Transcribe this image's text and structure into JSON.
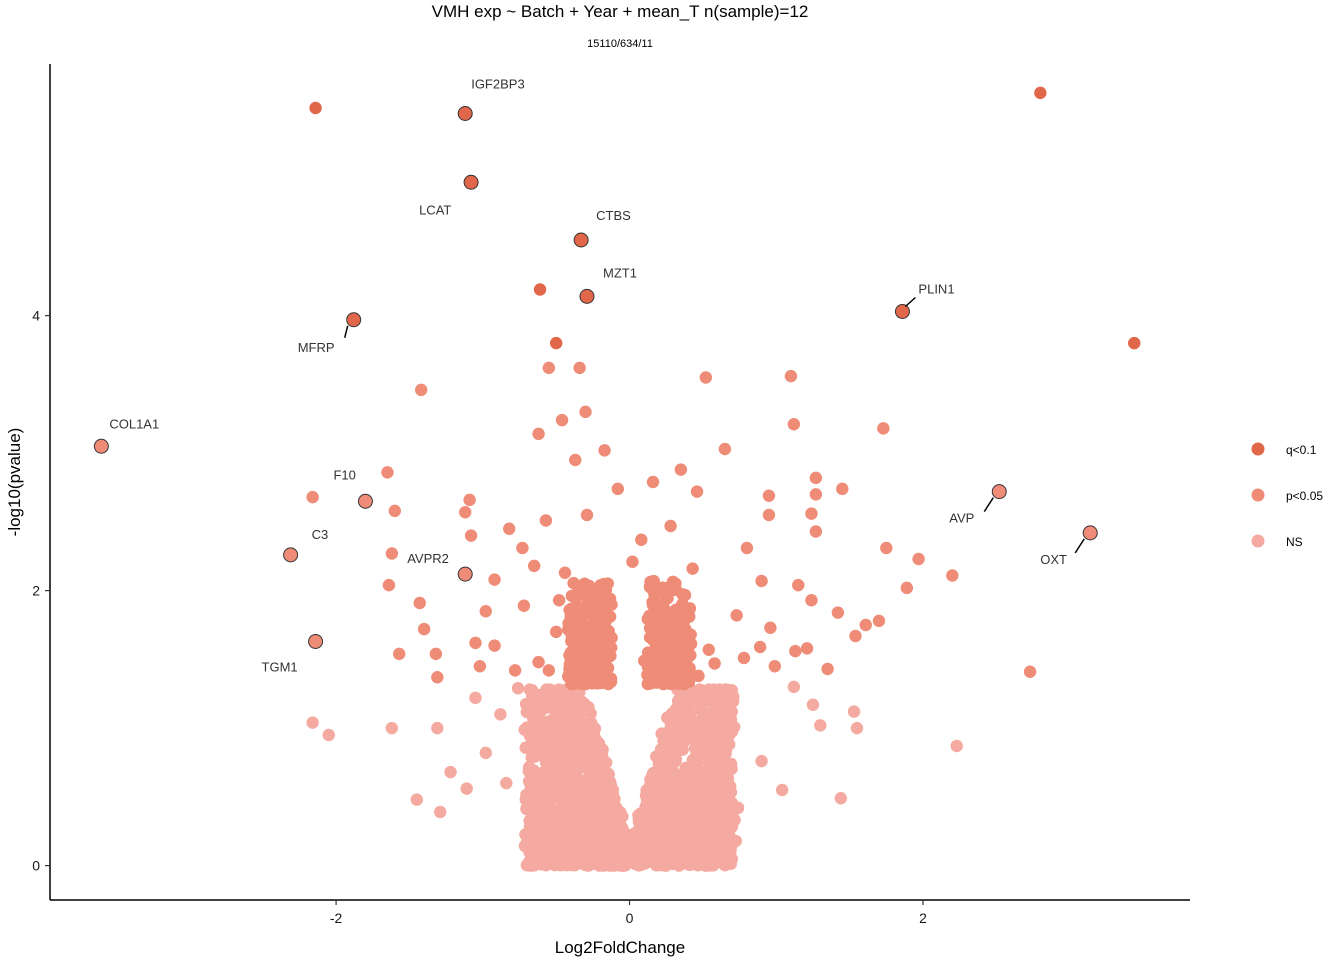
{
  "chart_data": {
    "type": "scatter",
    "title": "VMH exp ~ Batch + Year + mean_T n(sample)=12",
    "subtitle": "15110/634/11",
    "xlabel": "Log2FoldChange",
    "ylabel": "-log10(pvalue)",
    "xlim": [
      -3.95,
      3.82
    ],
    "ylim": [
      -0.25,
      5.83
    ],
    "x_ticks": [
      -2,
      0,
      2
    ],
    "y_ticks": [
      0,
      2,
      4
    ],
    "grid": false,
    "legend_position": "right",
    "colors": {
      "q<0.1": "#e0674a",
      "p<0.05": "#ef8c78",
      "NS": "#f4aaa0"
    },
    "series": [
      {
        "name": "q<0.1",
        "points": [
          [
            2.8,
            5.62
          ],
          [
            -2.14,
            5.51
          ],
          [
            -1.12,
            5.47
          ],
          [
            -1.08,
            4.97
          ],
          [
            -0.33,
            4.55
          ],
          [
            -0.61,
            4.19
          ],
          [
            -0.29,
            4.14
          ],
          [
            1.86,
            4.03
          ],
          [
            -1.88,
            3.97
          ],
          [
            -0.5,
            3.8
          ],
          [
            3.44,
            3.8
          ]
        ]
      },
      {
        "name": "p<0.05",
        "points": [
          [
            -3.6,
            3.05
          ],
          [
            -1.42,
            3.46
          ],
          [
            -0.55,
            3.62
          ],
          [
            -0.34,
            3.62
          ],
          [
            0.52,
            3.55
          ],
          [
            1.1,
            3.56
          ],
          [
            -0.46,
            3.24
          ],
          [
            -0.62,
            3.14
          ],
          [
            -0.3,
            3.3
          ],
          [
            1.12,
            3.21
          ],
          [
            1.73,
            3.18
          ],
          [
            -0.37,
            2.95
          ],
          [
            -0.17,
            3.02
          ],
          [
            0.35,
            2.88
          ],
          [
            0.65,
            3.03
          ],
          [
            -2.16,
            2.68
          ],
          [
            -1.65,
            2.86
          ],
          [
            -1.6,
            2.58
          ],
          [
            -1.09,
            2.66
          ],
          [
            -1.8,
            2.65
          ],
          [
            -1.12,
            2.57
          ],
          [
            1.27,
            2.82
          ],
          [
            1.45,
            2.74
          ],
          [
            0.95,
            2.69
          ],
          [
            1.27,
            2.7
          ],
          [
            2.52,
            2.72
          ],
          [
            -0.08,
            2.74
          ],
          [
            0.16,
            2.79
          ],
          [
            0.46,
            2.72
          ],
          [
            -0.29,
            2.55
          ],
          [
            -0.57,
            2.51
          ],
          [
            -0.82,
            2.45
          ],
          [
            -2.31,
            2.26
          ],
          [
            -1.08,
            2.4
          ],
          [
            -1.62,
            2.27
          ],
          [
            -0.73,
            2.31
          ],
          [
            0.08,
            2.37
          ],
          [
            0.28,
            2.47
          ],
          [
            0.95,
            2.55
          ],
          [
            1.24,
            2.56
          ],
          [
            1.27,
            2.43
          ],
          [
            0.8,
            2.31
          ],
          [
            1.75,
            2.31
          ],
          [
            1.97,
            2.23
          ],
          [
            3.14,
            2.42
          ],
          [
            -1.12,
            2.12
          ],
          [
            -0.92,
            2.08
          ],
          [
            -0.65,
            2.18
          ],
          [
            -0.44,
            2.13
          ],
          [
            0.02,
            2.21
          ],
          [
            0.43,
            2.16
          ],
          [
            0.9,
            2.07
          ],
          [
            1.15,
            2.04
          ],
          [
            2.2,
            2.11
          ],
          [
            1.89,
            2.02
          ],
          [
            -1.64,
            2.04
          ],
          [
            -1.43,
            1.91
          ],
          [
            -1.4,
            1.72
          ],
          [
            -0.98,
            1.85
          ],
          [
            -0.72,
            1.89
          ],
          [
            -0.48,
            1.93
          ],
          [
            -0.31,
            1.88
          ],
          [
            0.18,
            1.8
          ],
          [
            0.38,
            1.71
          ],
          [
            0.73,
            1.82
          ],
          [
            0.96,
            1.73
          ],
          [
            1.24,
            1.93
          ],
          [
            1.42,
            1.84
          ],
          [
            1.54,
            1.67
          ],
          [
            1.61,
            1.75
          ],
          [
            1.7,
            1.78
          ],
          [
            -1.57,
            1.54
          ],
          [
            -1.32,
            1.54
          ],
          [
            -1.05,
            1.62
          ],
          [
            -0.92,
            1.6
          ],
          [
            -0.62,
            1.48
          ],
          [
            -0.4,
            1.55
          ],
          [
            -0.25,
            1.62
          ],
          [
            0.25,
            1.51
          ],
          [
            0.54,
            1.57
          ],
          [
            0.89,
            1.59
          ],
          [
            1.13,
            1.56
          ],
          [
            1.21,
            1.58
          ],
          [
            1.35,
            1.43
          ],
          [
            -1.31,
            1.37
          ],
          [
            -1.02,
            1.45
          ],
          [
            -0.78,
            1.42
          ],
          [
            0.1,
            1.49
          ],
          [
            0.58,
            1.47
          ],
          [
            0.78,
            1.51
          ],
          [
            0.99,
            1.45
          ],
          [
            -2.14,
            1.63
          ],
          [
            2.73,
            1.41
          ],
          [
            -0.5,
            1.7
          ],
          [
            -0.3,
            1.58
          ],
          [
            0.3,
            1.6
          ],
          [
            0.47,
            1.38
          ],
          [
            -0.18,
            1.74
          ],
          [
            0.14,
            1.66
          ],
          [
            -0.55,
            1.42
          ]
        ]
      },
      {
        "name": "NS",
        "points": [
          [
            -2.16,
            1.04
          ],
          [
            -2.05,
            0.95
          ],
          [
            -1.62,
            1.0
          ],
          [
            -1.45,
            0.48
          ],
          [
            -1.29,
            0.39
          ],
          [
            -1.31,
            1.0
          ],
          [
            -1.22,
            0.68
          ],
          [
            -1.11,
            0.56
          ],
          [
            -0.98,
            0.82
          ],
          [
            -0.84,
            0.6
          ],
          [
            -0.7,
            0.42
          ],
          [
            -0.88,
            1.1
          ],
          [
            -1.05,
            1.22
          ],
          [
            -0.76,
            1.29
          ],
          [
            1.12,
            1.3
          ],
          [
            1.25,
            1.17
          ],
          [
            1.3,
            1.02
          ],
          [
            1.44,
            0.49
          ],
          [
            1.53,
            1.12
          ],
          [
            1.55,
            1.0
          ],
          [
            2.23,
            0.87
          ],
          [
            1.04,
            0.55
          ],
          [
            0.9,
            0.76
          ],
          [
            0.74,
            0.42
          ],
          [
            0.62,
            0.18
          ],
          [
            0.55,
            0.35
          ],
          [
            0.36,
            0.16
          ],
          [
            -0.4,
            0.12
          ],
          [
            -0.16,
            0.03
          ],
          [
            -0.04,
            0.0
          ],
          [
            0.05,
            0.02
          ],
          [
            0.18,
            0.05
          ],
          [
            -0.22,
            0.08
          ],
          [
            0.26,
            0.1
          ],
          [
            -0.32,
            0.15
          ]
        ]
      }
    ],
    "labels": [
      {
        "text": "IGF2BP3",
        "x": -1.12,
        "y": 5.47
      },
      {
        "text": "LCAT",
        "x": -1.08,
        "y": 4.97
      },
      {
        "text": "CTBS",
        "x": -0.33,
        "y": 4.55
      },
      {
        "text": "MZT1",
        "x": -0.29,
        "y": 4.14
      },
      {
        "text": "PLIN1",
        "x": 1.86,
        "y": 4.03
      },
      {
        "text": "MFRP",
        "x": -1.88,
        "y": 3.97
      },
      {
        "text": "COL1A1",
        "x": -3.6,
        "y": 3.05
      },
      {
        "text": "F10",
        "x": -1.8,
        "y": 2.65
      },
      {
        "text": "AVP",
        "x": 2.52,
        "y": 2.72
      },
      {
        "text": "C3",
        "x": -2.31,
        "y": 2.26
      },
      {
        "text": "OXT",
        "x": 3.14,
        "y": 2.42
      },
      {
        "text": "AVPR2",
        "x": -1.12,
        "y": 2.12
      },
      {
        "text": "TGM1",
        "x": -2.14,
        "y": 1.63
      }
    ]
  }
}
